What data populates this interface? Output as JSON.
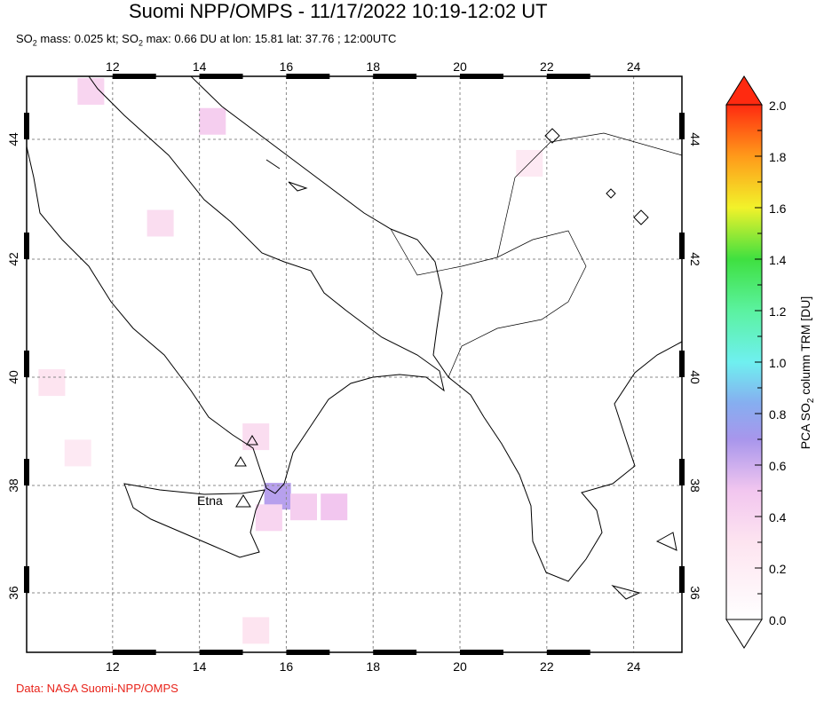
{
  "header": {
    "title": "Suomi NPP/OMPS - 11/17/2022 10:19-12:02 UT",
    "subtitle_parts": [
      "SO",
      "2",
      " mass: 0.025 kt; SO",
      "2",
      " max: 0.66 DU at lon: 15.81 lat: 37.76 ; 12:00UTC"
    ]
  },
  "credit": "Data: NASA Suomi-NPP/OMPS",
  "map": {
    "lon_ticks": [
      "12",
      "14",
      "16",
      "18",
      "20",
      "22",
      "24"
    ],
    "lat_ticks": [
      "44",
      "42",
      "40",
      "38",
      "36"
    ],
    "volcano_label": "Etna",
    "so2_pixels": [
      {
        "lon": 15.8,
        "lat": 37.8,
        "value": 0.66
      },
      {
        "lon": 16.4,
        "lat": 37.6,
        "value": 0.45
      },
      {
        "lon": 17.1,
        "lat": 37.6,
        "value": 0.5
      },
      {
        "lon": 15.6,
        "lat": 37.4,
        "value": 0.4
      },
      {
        "lon": 15.3,
        "lat": 38.9,
        "value": 0.35
      },
      {
        "lon": 14.3,
        "lat": 44.3,
        "value": 0.45
      },
      {
        "lon": 11.5,
        "lat": 44.8,
        "value": 0.4
      },
      {
        "lon": 13.1,
        "lat": 42.6,
        "value": 0.35
      },
      {
        "lon": 21.6,
        "lat": 43.6,
        "value": 0.25
      },
      {
        "lon": 11.2,
        "lat": 38.6,
        "value": 0.25
      },
      {
        "lon": 15.3,
        "lat": 35.3,
        "value": 0.3
      },
      {
        "lon": 10.6,
        "lat": 39.9,
        "value": 0.3
      }
    ]
  },
  "colorbar": {
    "label_parts": [
      "PCA SO",
      "2",
      " column TRM [DU]"
    ],
    "ticks": [
      "0.0",
      "0.2",
      "0.4",
      "0.6",
      "0.8",
      "1.0",
      "1.2",
      "1.4",
      "1.6",
      "1.8",
      "2.0"
    ],
    "min": 0,
    "max": 2
  }
}
